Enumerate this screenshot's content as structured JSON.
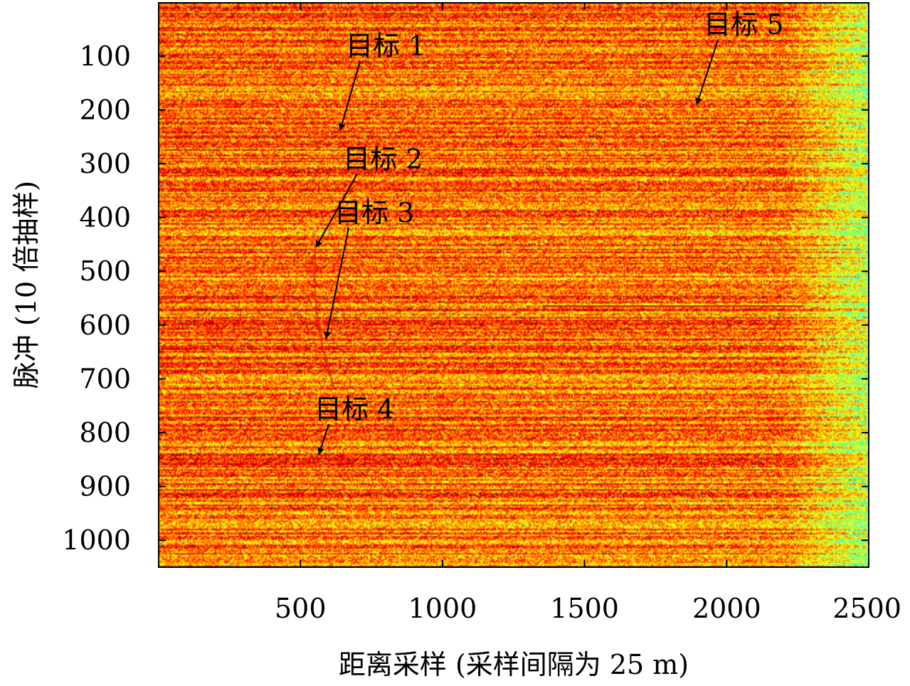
{
  "chart_data": {
    "type": "heatmap",
    "title": "",
    "xlabel": "距离采样 (采样间隔为 25 m)",
    "ylabel": "脉冲 (10 倍抽样)",
    "xlim": [
      1,
      2500
    ],
    "ylim": [
      1,
      1050
    ],
    "y_inverted": true,
    "grid": false,
    "legend": "none",
    "x_ticks": [
      500,
      1000,
      1500,
      2000,
      2500
    ],
    "x_tick_labels": [
      "500",
      "1000",
      "1500",
      "2000",
      "2500"
    ],
    "y_ticks": [
      100,
      200,
      300,
      400,
      500,
      600,
      700,
      800,
      900,
      1000
    ],
    "y_tick_labels": [
      "100",
      "200",
      "300",
      "400",
      "500",
      "600",
      "700",
      "800",
      "900",
      "1000"
    ],
    "colormap": "jet (upper range: cyan-green-yellow-orange-red)",
    "colors": {
      "background_dominant": "#f5b020",
      "high_intensity": "#d01010",
      "low_intensity": "#30d0c0"
    },
    "features": [
      {
        "kind": "faint track",
        "x_range": [
          540,
          620
        ],
        "y_range": [
          440,
          720
        ]
      },
      {
        "kind": "streak",
        "x_range": [
          1350,
          2270
        ],
        "y": 565
      }
    ],
    "annotations": [
      {
        "text": "目标 1",
        "label_xy": [
          810,
          80
        ],
        "point_xy": [
          640,
          238
        ]
      },
      {
        "text": "目标 2",
        "label_xy": [
          800,
          290
        ],
        "point_xy": [
          555,
          455
        ]
      },
      {
        "text": "目标 3",
        "label_xy": [
          770,
          390
        ],
        "point_xy": [
          590,
          625
        ]
      },
      {
        "text": "目标 4",
        "label_xy": [
          700,
          755
        ],
        "point_xy": [
          565,
          840
        ]
      },
      {
        "text": "目标 5",
        "label_xy": [
          2070,
          40
        ],
        "point_xy": [
          1895,
          190
        ]
      }
    ]
  }
}
